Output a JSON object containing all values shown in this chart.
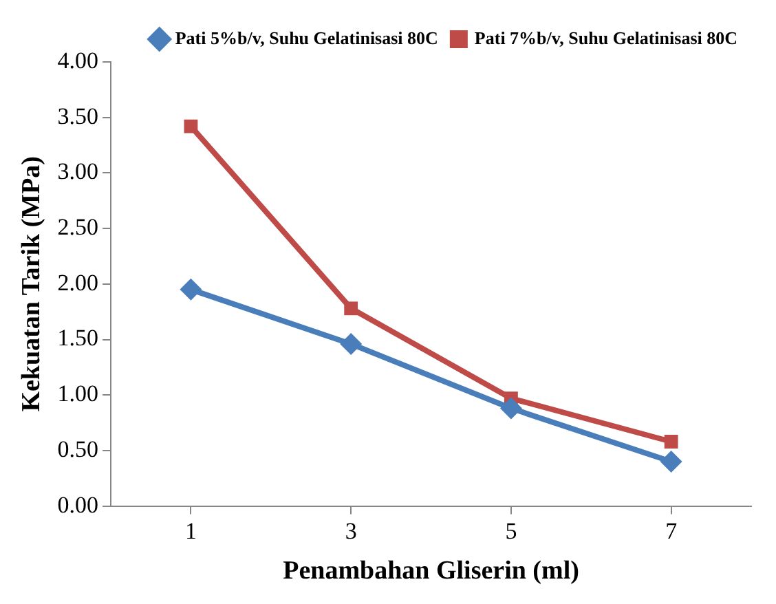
{
  "chart_data": {
    "type": "line",
    "xlabel": "Penambahan Gliserin (ml)",
    "ylabel": "Kekuatan Tarik (MPa)",
    "categories": [
      "1",
      "3",
      "5",
      "7"
    ],
    "series": [
      {
        "name": "Pati 5%b/v, Suhu Gelatinisasi 80C",
        "color": "#4a7ebb",
        "marker": "diamond",
        "values": [
          1.95,
          1.46,
          0.88,
          0.4
        ]
      },
      {
        "name": "Pati 7%b/v, Suhu Gelatinisasi 80C",
        "color": "#be4b48",
        "marker": "square",
        "values": [
          3.42,
          1.78,
          0.97,
          0.58
        ]
      }
    ],
    "ylim": [
      0,
      4
    ],
    "yticks": [
      {
        "value": 0,
        "label": "0.00"
      },
      {
        "value": 0.5,
        "label": "0.50"
      },
      {
        "value": 1,
        "label": "1.00"
      },
      {
        "value": 1.5,
        "label": "1.50"
      },
      {
        "value": 2,
        "label": "2.00"
      },
      {
        "value": 2.5,
        "label": "2.50"
      },
      {
        "value": 3,
        "label": "3.00"
      },
      {
        "value": 3.5,
        "label": "3.50"
      },
      {
        "value": 4,
        "label": "4.00"
      }
    ],
    "grid": false,
    "legend": "top right",
    "line_style": "solid"
  }
}
